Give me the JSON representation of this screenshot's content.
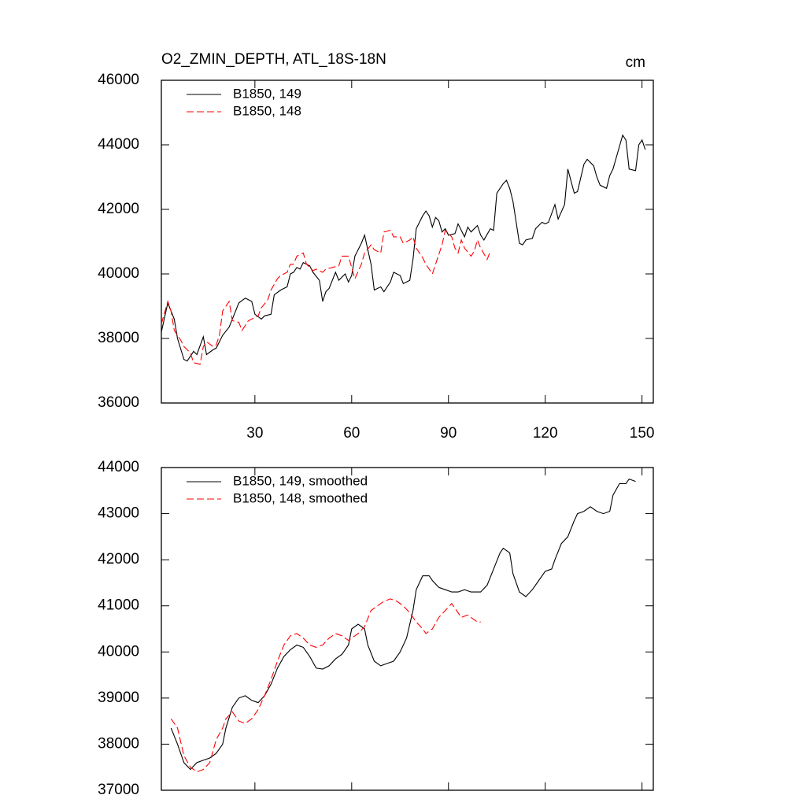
{
  "chart_data": [
    {
      "type": "line",
      "title": "O2_ZMIN_DEPTH, ATL_18S-18N",
      "units": "cm",
      "xlim": [
        1,
        153.5
      ],
      "xticks": [
        30,
        60,
        90,
        120,
        150
      ],
      "ylim": [
        36000,
        46000
      ],
      "yticks": [
        36000,
        38000,
        40000,
        42000,
        44000,
        46000
      ],
      "legend": "upper left",
      "series": [
        {
          "name": "B1850, 149",
          "color": "#000000",
          "dash": false,
          "x": [
            1,
            3,
            5,
            6,
            8,
            9,
            11,
            12,
            14,
            15,
            17,
            18,
            20,
            22,
            23,
            25,
            27,
            29,
            30,
            32,
            33,
            35,
            36,
            38,
            40,
            41,
            42,
            43,
            44,
            45,
            47,
            48,
            50,
            51,
            52,
            53,
            55,
            56,
            58,
            59,
            60,
            61,
            63,
            64,
            66,
            67,
            69,
            70,
            72,
            73,
            75,
            76,
            78,
            79,
            80,
            82,
            83,
            84,
            85,
            86,
            87,
            88,
            89,
            90,
            92,
            93,
            95,
            96,
            97,
            99,
            100,
            101,
            103,
            104,
            105,
            107,
            108,
            109,
            110,
            112,
            113,
            114,
            116,
            117,
            119,
            120,
            121,
            123,
            124,
            126,
            127,
            129,
            130,
            132,
            133,
            135,
            136,
            137,
            139,
            140,
            141,
            142,
            144,
            145,
            146,
            148,
            149,
            150,
            151
          ],
          "values": [
            38200,
            39100,
            38600,
            38000,
            37350,
            37300,
            37600,
            37500,
            38050,
            37500,
            37650,
            37700,
            38100,
            38350,
            38600,
            39100,
            39250,
            39150,
            38750,
            38600,
            38700,
            38750,
            39350,
            39500,
            39600,
            40000,
            40050,
            40200,
            40150,
            40350,
            40250,
            40050,
            39800,
            39150,
            39450,
            39550,
            40050,
            39800,
            40000,
            39750,
            39950,
            40550,
            40950,
            41200,
            40300,
            39500,
            39600,
            39450,
            39750,
            40050,
            39950,
            39700,
            39800,
            40450,
            41400,
            41800,
            41950,
            41800,
            41450,
            41750,
            41650,
            41300,
            41400,
            41200,
            41250,
            41550,
            41150,
            41450,
            41300,
            41500,
            41200,
            41050,
            41400,
            41350,
            42500,
            42800,
            42900,
            42650,
            42250,
            40950,
            40900,
            41050,
            41100,
            41400,
            41600,
            41550,
            41600,
            42150,
            41700,
            42150,
            43250,
            42500,
            42550,
            43400,
            43550,
            43350,
            43000,
            42750,
            42650,
            43050,
            43250,
            43600,
            44300,
            44150,
            43250,
            43200,
            44000,
            44150,
            43850
          ]
        },
        {
          "name": "B1850, 148",
          "color": "#ff0000",
          "dash": true,
          "x": [
            1,
            3,
            4,
            5,
            7,
            8,
            10,
            11,
            13,
            14,
            15,
            17,
            18,
            19,
            20,
            22,
            23,
            25,
            26,
            28,
            29,
            31,
            32,
            34,
            35,
            37,
            38,
            40,
            41,
            42,
            43,
            45,
            46,
            48,
            49,
            51,
            52,
            54,
            56,
            57,
            59,
            60,
            61,
            63,
            64,
            66,
            67,
            69,
            70,
            72,
            73,
            75,
            76,
            78,
            79,
            80,
            82,
            83,
            85,
            86,
            88,
            89,
            91,
            92,
            93,
            94,
            95,
            97,
            98,
            99,
            100,
            102,
            103
          ],
          "values": [
            38450,
            39150,
            38850,
            38250,
            37950,
            37750,
            37550,
            37250,
            37200,
            37750,
            37900,
            37750,
            37800,
            38100,
            38850,
            39150,
            38550,
            38500,
            38250,
            38550,
            38600,
            38700,
            38950,
            39200,
            39500,
            39850,
            39950,
            40050,
            40300,
            40300,
            40550,
            40650,
            40300,
            40100,
            40150,
            40050,
            40150,
            40200,
            40250,
            40550,
            40550,
            40200,
            39850,
            40300,
            40650,
            40900,
            40750,
            40650,
            41300,
            41350,
            41150,
            41150,
            40950,
            41050,
            41150,
            40800,
            40500,
            40300,
            40000,
            40300,
            40900,
            41350,
            41150,
            40800,
            40650,
            41050,
            40800,
            40550,
            40700,
            41050,
            40800,
            40450,
            40700
          ]
        }
      ]
    },
    {
      "type": "line",
      "xtick_labels": false,
      "xlim": [
        1,
        153.5
      ],
      "xticks": [
        30,
        60,
        90,
        120,
        150
      ],
      "ylim": [
        37000,
        44000
      ],
      "yticks": [
        37000,
        38000,
        39000,
        40000,
        41000,
        42000,
        43000,
        44000
      ],
      "legend": "upper left",
      "series": [
        {
          "name": "B1850, 149, smoothed",
          "color": "#000000",
          "dash": false,
          "x": [
            4,
            6,
            8,
            10,
            12,
            14,
            16,
            18,
            20,
            21,
            23,
            25,
            27,
            29,
            31,
            33,
            35,
            37,
            39,
            41,
            43,
            45,
            47,
            49,
            51,
            53,
            55,
            57,
            59,
            60,
            62,
            64,
            65,
            67,
            69,
            71,
            73,
            75,
            77,
            79,
            80,
            82,
            84,
            85,
            87,
            89,
            91,
            93,
            95,
            97,
            99,
            100,
            102,
            104,
            106,
            107,
            109,
            110,
            112,
            114,
            116,
            118,
            120,
            122,
            123,
            125,
            127,
            129,
            130,
            132,
            134,
            136,
            138,
            140,
            141,
            143,
            145,
            146,
            148
          ],
          "values": [
            38350,
            38000,
            37600,
            37450,
            37600,
            37650,
            37700,
            37800,
            38000,
            38350,
            38800,
            39000,
            39050,
            38950,
            38900,
            39050,
            39300,
            39650,
            39900,
            40050,
            40150,
            40100,
            39900,
            39650,
            39630,
            39700,
            39850,
            39950,
            40150,
            40500,
            40600,
            40500,
            40150,
            39800,
            39700,
            39750,
            39800,
            40000,
            40300,
            40900,
            41350,
            41650,
            41650,
            41550,
            41400,
            41350,
            41300,
            41300,
            41350,
            41300,
            41300,
            41300,
            41450,
            41800,
            42150,
            42250,
            42150,
            41700,
            41300,
            41200,
            41350,
            41550,
            41750,
            41800,
            42000,
            42350,
            42500,
            42850,
            43000,
            43050,
            43150,
            43050,
            43000,
            43050,
            43400,
            43650,
            43650,
            43750,
            43700
          ]
        },
        {
          "name": "B1850, 148, smoothed",
          "color": "#ff0000",
          "dash": true,
          "x": [
            4,
            6,
            8,
            10,
            12,
            14,
            16,
            18,
            20,
            21,
            23,
            25,
            27,
            29,
            31,
            33,
            35,
            37,
            39,
            41,
            43,
            45,
            47,
            49,
            51,
            53,
            55,
            57,
            59,
            60,
            62,
            64,
            66,
            68,
            70,
            72,
            74,
            76,
            78,
            80,
            82,
            83,
            85,
            87,
            89,
            91,
            93,
            94,
            96,
            97,
            99,
            100
          ],
          "values": [
            38550,
            38350,
            37750,
            37500,
            37400,
            37450,
            37600,
            38100,
            38350,
            38550,
            38700,
            38500,
            38450,
            38550,
            38750,
            39050,
            39400,
            39800,
            40150,
            40350,
            40400,
            40300,
            40150,
            40100,
            40150,
            40300,
            40400,
            40350,
            40250,
            40300,
            40400,
            40550,
            40900,
            41000,
            41100,
            41150,
            41100,
            41000,
            40850,
            40650,
            40500,
            40400,
            40500,
            40750,
            40900,
            41050,
            40850,
            40750,
            40800,
            40750,
            40650,
            40650
          ]
        }
      ]
    }
  ]
}
